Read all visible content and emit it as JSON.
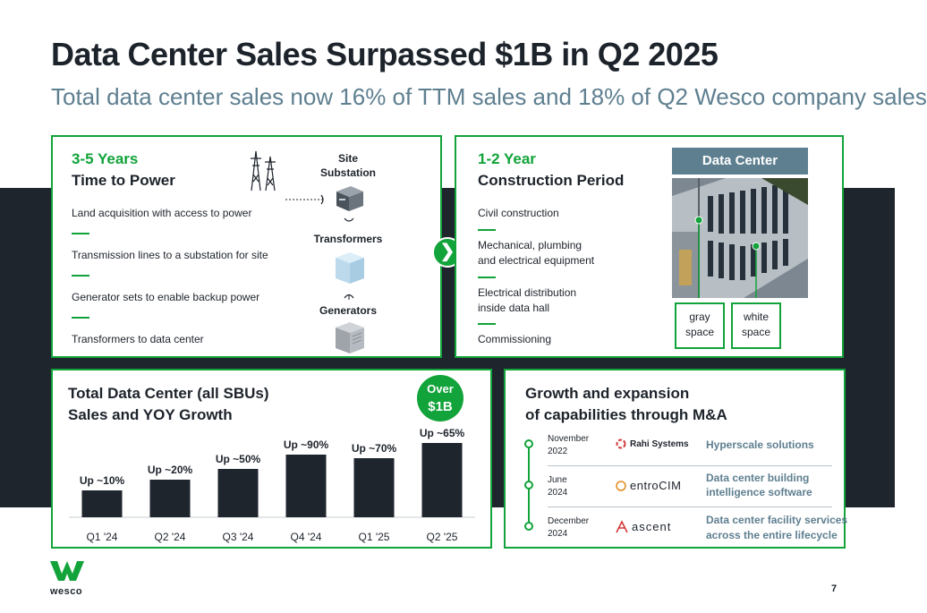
{
  "header": {
    "title": "Data Center Sales Surpassed $1B in Q2 2025",
    "subtitle": "Total data center sales now 16% of TTM sales and 18% of Q2 Wesco company sales"
  },
  "power_card": {
    "duration": "3-5 Years",
    "heading": "Time to Power",
    "steps": [
      "Land acquisition with access to power",
      "Transmission lines to a substation for site",
      "Generator sets to enable backup power",
      "Transformers to data center"
    ],
    "icon_labels": {
      "substation_line1": "Site",
      "substation_line2": "Substation",
      "transformers": "Transformers",
      "generators": "Generators"
    },
    "icons": [
      "transmission-tower-icon",
      "substation-icon",
      "transformer-icon",
      "generator-icon"
    ]
  },
  "construction_card": {
    "duration": "1-2 Year",
    "heading": "Construction Period",
    "steps": [
      "Civil construction",
      "Mechanical, plumbing",
      "and electrical equipment",
      "Electrical distribution",
      "inside data hall",
      "Commissioning"
    ],
    "image_title": "Data Center",
    "gray_space": [
      "gray",
      "space"
    ],
    "white_space": [
      "white",
      "space"
    ]
  },
  "chart_card": {
    "heading_line1": "Total Data Center (all SBUs)",
    "heading_line2": "Sales and YOY Growth",
    "badge_line1": "Over",
    "badge_line2": "$1B"
  },
  "chart_data": {
    "type": "bar",
    "categories": [
      "Q1 '24",
      "Q2 '24",
      "Q3 '24",
      "Q4 '24",
      "Q1 '25",
      "Q2 '25"
    ],
    "values": [
      0.3,
      0.42,
      0.54,
      0.7,
      0.66,
      0.83
    ],
    "value_scale": "relative bar height (no y-axis shown)",
    "data_labels": [
      "Up ~10%",
      "Up ~20%",
      "Up ~50%",
      "Up ~90%",
      "Up ~70%",
      "Up ~65%"
    ],
    "ylim": [
      0,
      1
    ],
    "grid": false,
    "bar_color": "#1e252d"
  },
  "mna_card": {
    "heading_line1": "Growth and expansion",
    "heading_line2": "of capabilities through M&A",
    "items": [
      {
        "date1": "November",
        "date2": "2022",
        "company": "Rahi Systems",
        "desc1": "Hyperscale solutions",
        "desc2": ""
      },
      {
        "date1": "June",
        "date2": "2024",
        "company": "entroCIM",
        "desc1": "Data center building",
        "desc2": "intelligence software"
      },
      {
        "date1": "December",
        "date2": "2024",
        "company": "ascent",
        "desc1": "Data center facility services",
        "desc2": "across the entire lifecycle"
      }
    ]
  },
  "footer": {
    "brand": "wesco",
    "page_number": "7"
  },
  "colors": {
    "accent_green": "#12a33a",
    "dark_band": "#1e252d",
    "slate_blue": "#5e7f90"
  }
}
